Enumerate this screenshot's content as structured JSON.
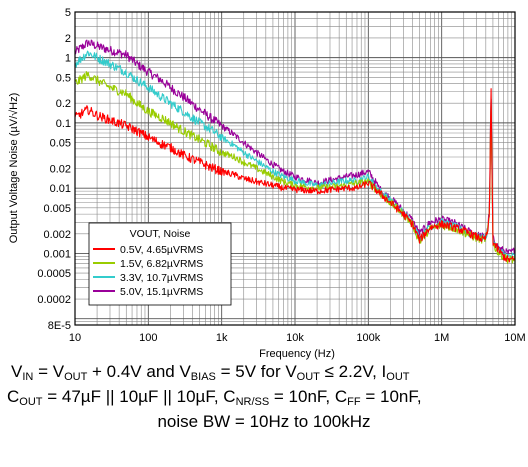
{
  "chart_data": {
    "type": "line",
    "xlabel": "Frequency (Hz)",
    "ylabel": "Output Voltage Noise (µV/√Hz)",
    "x_scale": "log",
    "y_scale": "log",
    "xlim": [
      10,
      10000000
    ],
    "ylim": [
      8e-05,
      5
    ],
    "grid": true,
    "x_ticks": [
      {
        "v": 10,
        "label": "10"
      },
      {
        "v": 100,
        "label": "100"
      },
      {
        "v": 1000,
        "label": "1k"
      },
      {
        "v": 10000,
        "label": "10k"
      },
      {
        "v": 100000,
        "label": "100k"
      },
      {
        "v": 1000000,
        "label": "1M"
      },
      {
        "v": 10000000,
        "label": "10M"
      }
    ],
    "y_ticks": [
      {
        "v": 5,
        "label": "5"
      },
      {
        "v": 2,
        "label": "2"
      },
      {
        "v": 1,
        "label": "1"
      },
      {
        "v": 0.5,
        "label": "0.5"
      },
      {
        "v": 0.2,
        "label": "0.2"
      },
      {
        "v": 0.1,
        "label": "0.1"
      },
      {
        "v": 0.05,
        "label": "0.05"
      },
      {
        "v": 0.02,
        "label": "0.02"
      },
      {
        "v": 0.01,
        "label": "0.01"
      },
      {
        "v": 0.005,
        "label": "0.005"
      },
      {
        "v": 0.002,
        "label": "0.002"
      },
      {
        "v": 0.001,
        "label": "0.001"
      },
      {
        "v": 0.0005,
        "label": "0.0005"
      },
      {
        "v": 0.0002,
        "label": "0.0002"
      },
      {
        "v": 8e-05,
        "label": "8E-5"
      }
    ],
    "legend": {
      "title": "VOUT, Noise",
      "placement": "bottom-left",
      "entries": [
        "0.5V, 4.65µVRMS",
        "1.5V, 6.82µVRMS",
        "3.3V, 10.7µVRMS",
        "5.0V, 15.1µVRMS"
      ]
    },
    "series": [
      {
        "name": "0.5V, 4.65µVRMS",
        "color": "#ff0000",
        "x": [
          10,
          15,
          20,
          30,
          50,
          70,
          100,
          150,
          200,
          300,
          500,
          700,
          1000,
          1500,
          2000,
          3000,
          5000,
          7000,
          10000,
          20000,
          50000,
          70000,
          100000,
          150000,
          200000,
          300000,
          400000,
          500000,
          700000,
          1000000,
          1500000,
          2000000,
          3000000,
          3800000,
          4200000,
          4500000,
          4700000,
          5000000,
          6000000,
          7000000,
          8000000,
          10000000
        ],
        "y": [
          0.12,
          0.16,
          0.13,
          0.11,
          0.09,
          0.075,
          0.06,
          0.048,
          0.042,
          0.032,
          0.025,
          0.021,
          0.018,
          0.016,
          0.014,
          0.0125,
          0.011,
          0.01,
          0.0095,
          0.009,
          0.01,
          0.01,
          0.012,
          0.008,
          0.006,
          0.004,
          0.0028,
          0.0016,
          0.0025,
          0.0028,
          0.0025,
          0.0022,
          0.0018,
          0.0016,
          0.002,
          0.004,
          0.5,
          0.0015,
          0.0011,
          0.0009,
          0.0008,
          0.0008
        ]
      },
      {
        "name": "1.5V, 6.82µVRMS",
        "color": "#99cc00",
        "x": [
          10,
          15,
          20,
          30,
          50,
          70,
          100,
          150,
          200,
          300,
          500,
          700,
          1000,
          1500,
          2000,
          3000,
          5000,
          7000,
          10000,
          20000,
          50000,
          70000,
          100000,
          150000,
          200000,
          300000,
          400000,
          500000,
          700000,
          1000000,
          1500000,
          2000000,
          3000000,
          3800000,
          4200000,
          4500000,
          4700000,
          5000000,
          6000000,
          7000000,
          8000000,
          10000000
        ],
        "y": [
          0.4,
          0.55,
          0.45,
          0.35,
          0.28,
          0.2,
          0.15,
          0.12,
          0.1,
          0.075,
          0.055,
          0.045,
          0.035,
          0.03,
          0.025,
          0.02,
          0.015,
          0.0125,
          0.011,
          0.01,
          0.011,
          0.012,
          0.0125,
          0.008,
          0.006,
          0.004,
          0.0028,
          0.0015,
          0.0024,
          0.0027,
          0.0024,
          0.0021,
          0.0017,
          0.0016,
          0.002,
          0.004,
          0.3,
          0.0014,
          0.001,
          0.0009,
          0.0008,
          0.0008
        ]
      },
      {
        "name": "3.3V, 10.7µVRMS",
        "color": "#33cccc",
        "x": [
          10,
          15,
          20,
          30,
          50,
          70,
          100,
          150,
          200,
          300,
          500,
          700,
          1000,
          1500,
          2000,
          3000,
          5000,
          7000,
          10000,
          20000,
          50000,
          70000,
          100000,
          150000,
          200000,
          300000,
          400000,
          500000,
          700000,
          1000000,
          1500000,
          2000000,
          3000000,
          3800000,
          4200000,
          4500000,
          4700000,
          5000000,
          6000000,
          7000000,
          8000000,
          10000000
        ],
        "y": [
          0.8,
          1.2,
          1.0,
          0.8,
          0.6,
          0.45,
          0.35,
          0.25,
          0.2,
          0.15,
          0.1,
          0.08,
          0.06,
          0.045,
          0.035,
          0.026,
          0.018,
          0.015,
          0.013,
          0.011,
          0.013,
          0.013,
          0.015,
          0.0085,
          0.0065,
          0.0042,
          0.003,
          0.0017,
          0.0026,
          0.003,
          0.0026,
          0.0022,
          0.0018,
          0.0017,
          0.0021,
          0.0045,
          0.4,
          0.0016,
          0.0011,
          0.001,
          0.0009,
          0.0009
        ]
      },
      {
        "name": "5.0V, 15.1µVRMS",
        "color": "#990099",
        "x": [
          10,
          15,
          20,
          30,
          50,
          70,
          100,
          150,
          200,
          300,
          500,
          700,
          1000,
          1500,
          2000,
          3000,
          5000,
          7000,
          10000,
          20000,
          50000,
          70000,
          100000,
          150000,
          200000,
          300000,
          400000,
          500000,
          700000,
          1000000,
          1500000,
          2000000,
          3000000,
          3800000,
          4200000,
          4500000,
          4700000,
          5000000,
          6000000,
          7000000,
          8000000,
          10000000
        ],
        "y": [
          1.2,
          1.7,
          1.5,
          1.3,
          1.1,
          0.8,
          0.6,
          0.45,
          0.35,
          0.25,
          0.16,
          0.12,
          0.09,
          0.065,
          0.05,
          0.035,
          0.023,
          0.018,
          0.015,
          0.012,
          0.015,
          0.016,
          0.018,
          0.009,
          0.007,
          0.0045,
          0.0032,
          0.002,
          0.003,
          0.0033,
          0.0029,
          0.0024,
          0.0019,
          0.0018,
          0.0022,
          0.005,
          0.35,
          0.0017,
          0.0012,
          0.0011,
          0.001,
          0.0011
        ]
      }
    ]
  },
  "caption": {
    "line1": "V<sub>IN</sub> = V<sub>OUT</sub> + 0.4V and V<sub>BIAS</sub> = 5V for V<sub>OUT</sub> ≤ 2.2V, I<sub>OUT</sub>",
    "line2": "C<sub>OUT</sub> = 47µF || 10µF || 10µF, C<sub>NR/SS</sub> = 10nF, C<sub>FF</sub> = 10nF,",
    "line3": "noise BW = 10Hz to 100kHz"
  }
}
